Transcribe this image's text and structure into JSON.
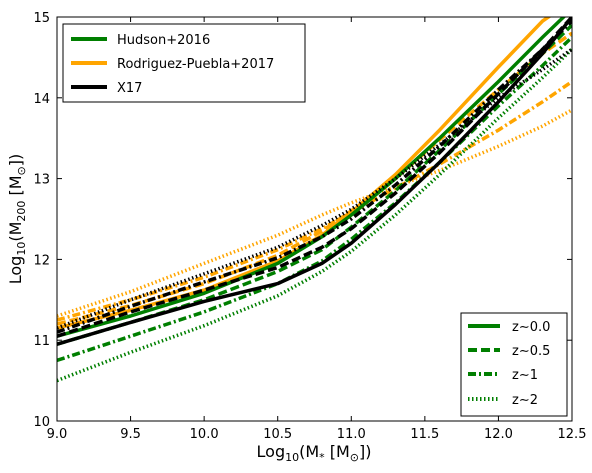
{
  "chart_data": {
    "type": "line",
    "xlabel": {
      "main": "Log",
      "sub": "10",
      "rest": "(M",
      "starsub": "*",
      "units": " [M",
      "sun": "⊙",
      "close": "])"
    },
    "ylabel": {
      "main": "Log",
      "sub": "10",
      "rest": "(M",
      "sub2": "200",
      "units": " [M",
      "sun": "⊙",
      "close": "])"
    },
    "xlim": [
      9.0,
      12.5
    ],
    "ylim": [
      10,
      15
    ],
    "xticks": [
      9.0,
      9.5,
      10.0,
      10.5,
      11.0,
      11.5,
      12.0,
      12.5
    ],
    "xtick_labels": [
      "9.0",
      "9.5",
      "10.0",
      "10.5",
      "11.0",
      "11.5",
      "12.0",
      "12.5"
    ],
    "yticks": [
      10,
      11,
      12,
      13,
      14,
      15
    ],
    "ytick_labels": [
      "10",
      "11",
      "12",
      "13",
      "14",
      "15"
    ],
    "grid": false,
    "colors": {
      "hudson": "#007f00",
      "rodriguez": "#ffa500",
      "x17": "#000000"
    },
    "legend_models": {
      "placement": "top-left",
      "entries": [
        {
          "label": "Hudson+2016",
          "color": "#007f00"
        },
        {
          "label": "Rodriguez-Puebla+2017",
          "color": "#ffa500"
        },
        {
          "label": "X17",
          "color": "#000000"
        }
      ]
    },
    "legend_redshifts": {
      "placement": "bottom-right",
      "entries": [
        {
          "label": "z∼0.0",
          "style": "solid"
        },
        {
          "label": "z∼0.5",
          "style": "dashed"
        },
        {
          "label": "z∼1",
          "style": "dashdot"
        },
        {
          "label": "z∼2",
          "style": "dotted"
        }
      ]
    },
    "series": [
      {
        "model": "rodriguez",
        "z": "0.0",
        "style": "solid",
        "color": "#ffa500",
        "x": [
          9.0,
          9.5,
          10.0,
          10.5,
          10.8,
          11.0,
          11.3,
          11.6,
          12.0,
          12.3,
          12.5
        ],
        "y": [
          11.15,
          11.37,
          11.62,
          11.98,
          12.3,
          12.58,
          13.05,
          13.6,
          14.38,
          14.95,
          15.2
        ]
      },
      {
        "model": "rodriguez",
        "z": "0.5",
        "style": "dashed",
        "color": "#ffa500",
        "x": [
          9.0,
          9.5,
          10.0,
          10.5,
          10.8,
          11.0,
          11.3,
          11.6,
          12.0,
          12.3,
          12.5
        ],
        "y": [
          11.2,
          11.43,
          11.7,
          12.05,
          12.35,
          12.6,
          13.0,
          13.48,
          14.1,
          14.55,
          14.8
        ]
      },
      {
        "model": "rodriguez",
        "z": "1",
        "style": "dashdot",
        "color": "#ffa500",
        "x": [
          9.0,
          9.5,
          10.0,
          10.5,
          10.8,
          11.0,
          11.3,
          11.6,
          12.0,
          12.3,
          12.5
        ],
        "y": [
          11.25,
          11.5,
          11.78,
          12.12,
          12.38,
          12.58,
          12.88,
          13.18,
          13.6,
          13.95,
          14.2
        ]
      },
      {
        "model": "rodriguez",
        "z": "2",
        "style": "dotted",
        "color": "#ffa500",
        "x": [
          9.0,
          9.5,
          10.0,
          10.5,
          10.8,
          11.0,
          11.3,
          11.6,
          12.0,
          12.3,
          12.5
        ],
        "y": [
          11.3,
          11.6,
          11.95,
          12.3,
          12.55,
          12.7,
          12.9,
          13.1,
          13.4,
          13.65,
          13.85
        ]
      },
      {
        "model": "hudson",
        "z": "0.0",
        "style": "solid",
        "color": "#007f00",
        "x": [
          9.0,
          9.5,
          10.0,
          10.5,
          10.8,
          11.0,
          11.3,
          11.6,
          12.0,
          12.3,
          12.5
        ],
        "y": [
          11.05,
          11.3,
          11.58,
          11.95,
          12.28,
          12.55,
          13.0,
          13.5,
          14.2,
          14.75,
          15.1
        ]
      },
      {
        "model": "hudson",
        "z": "0.5",
        "style": "dashed",
        "color": "#007f00",
        "x": [
          9.0,
          9.5,
          10.0,
          10.5,
          10.8,
          11.0,
          11.3,
          11.6,
          12.0,
          12.3,
          12.5
        ],
        "y": [
          10.95,
          11.22,
          11.5,
          11.85,
          12.12,
          12.4,
          12.85,
          13.35,
          14.05,
          14.55,
          14.9
        ]
      },
      {
        "model": "hudson",
        "z": "1",
        "style": "dashdot",
        "color": "#007f00",
        "x": [
          9.0,
          9.5,
          10.0,
          10.5,
          10.8,
          11.0,
          11.3,
          11.6,
          12.0,
          12.3,
          12.5
        ],
        "y": [
          10.75,
          11.05,
          11.35,
          11.7,
          11.98,
          12.25,
          12.7,
          13.2,
          13.9,
          14.4,
          14.75
        ]
      },
      {
        "model": "hudson",
        "z": "2",
        "style": "dotted",
        "color": "#007f00",
        "x": [
          9.0,
          9.5,
          10.0,
          10.5,
          10.8,
          11.0,
          11.3,
          11.6,
          12.0,
          12.3,
          12.5
        ],
        "y": [
          10.5,
          10.85,
          11.18,
          11.55,
          11.85,
          12.1,
          12.55,
          13.05,
          13.75,
          14.25,
          14.6
        ]
      },
      {
        "model": "x17",
        "z": "0.0",
        "style": "solid",
        "color": "#000000",
        "x": [
          9.0,
          9.5,
          10.0,
          10.5,
          10.8,
          11.0,
          11.3,
          11.6,
          12.0,
          12.3,
          12.5
        ],
        "y": [
          10.95,
          11.22,
          11.48,
          11.7,
          11.95,
          12.2,
          12.68,
          13.2,
          13.95,
          14.55,
          15.0
        ]
      },
      {
        "model": "x17",
        "z": "0.5",
        "style": "dashed",
        "color": "#000000",
        "x": [
          9.0,
          9.5,
          10.0,
          10.5,
          10.8,
          11.0,
          11.3,
          11.6,
          12.0,
          12.3,
          12.5
        ],
        "y": [
          11.05,
          11.35,
          11.62,
          11.9,
          12.15,
          12.38,
          12.82,
          13.32,
          14.05,
          14.6,
          15.0
        ]
      },
      {
        "model": "x17",
        "z": "1",
        "style": "dashdot",
        "color": "#000000",
        "x": [
          9.0,
          9.5,
          10.0,
          10.5,
          10.8,
          11.0,
          11.3,
          11.6,
          12.0,
          12.3,
          12.5
        ],
        "y": [
          11.1,
          11.42,
          11.72,
          12.02,
          12.28,
          12.5,
          12.92,
          13.4,
          14.1,
          14.6,
          14.95
        ]
      },
      {
        "model": "x17",
        "z": "2",
        "style": "dotted",
        "color": "#000000",
        "x": [
          9.0,
          9.5,
          10.0,
          10.5,
          10.8,
          11.0,
          11.3,
          11.6,
          12.0,
          12.3,
          12.5
        ],
        "y": [
          11.15,
          11.5,
          11.82,
          12.15,
          12.42,
          12.62,
          13.0,
          13.42,
          14.0,
          14.35,
          14.6
        ]
      }
    ]
  }
}
